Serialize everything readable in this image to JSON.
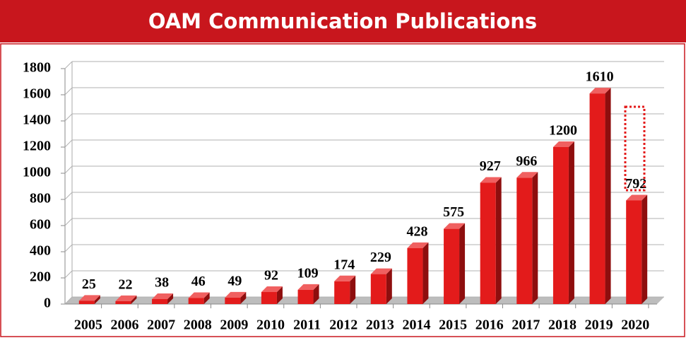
{
  "chart_data": {
    "type": "bar",
    "title": "OAM Communication Publications",
    "categories": [
      "2005",
      "2006",
      "2007",
      "2008",
      "2009",
      "2010",
      "2011",
      "2012",
      "2013",
      "2014",
      "2015",
      "2016",
      "2017",
      "2018",
      "2019",
      "2020"
    ],
    "values": [
      25,
      22,
      38,
      46,
      49,
      92,
      109,
      174,
      229,
      428,
      575,
      927,
      966,
      1200,
      1610,
      792
    ],
    "color": "#e31b1b",
    "ylim": [
      0,
      1800
    ],
    "yticks": [
      0,
      200,
      400,
      600,
      800,
      1000,
      1200,
      1400,
      1600,
      1800
    ],
    "grid": true
  }
}
